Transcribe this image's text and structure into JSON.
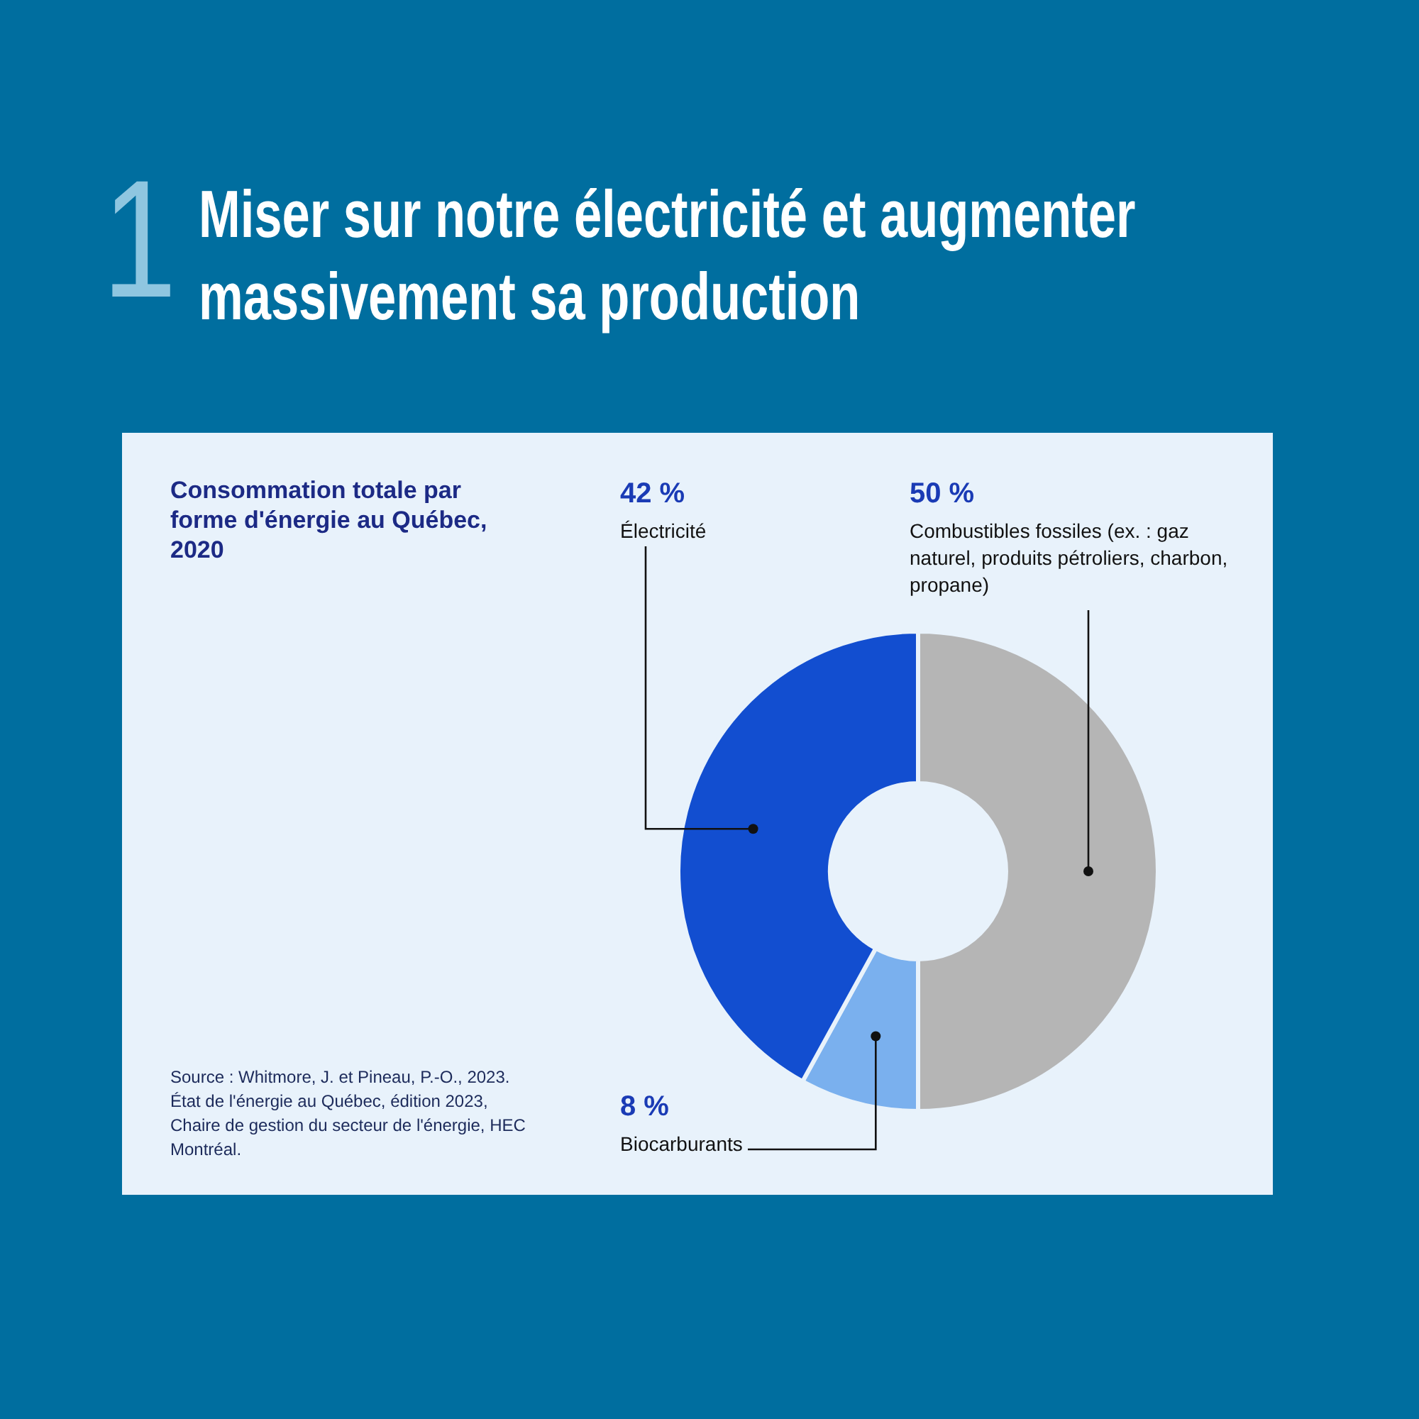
{
  "chart_data": {
    "type": "donut",
    "title": "Miser sur notre électricité et augmenter massivement sa production",
    "subtitle": "Consommation totale par forme d'énergie au Québec, 2020",
    "categories": [
      "Combustibles fossiles (ex. : gaz naturel, produits pétroliers, charbon, propane)",
      "Biocarburants",
      "Électricité"
    ],
    "values": [
      50,
      8,
      42
    ],
    "value_labels": [
      "50 %",
      "8 %",
      "42 %"
    ],
    "colors": [
      "#b5b5b5",
      "#7ab0ee",
      "#124ed0"
    ],
    "annotations": [
      "1",
      "Source : Whitmore, J. et Pineau, P.-O., 2023. État de l'énergie au Québec, édition 2023, Chaire de gestion du secteur de l'énergie, HEC Montréal."
    ],
    "legend": false
  }
}
